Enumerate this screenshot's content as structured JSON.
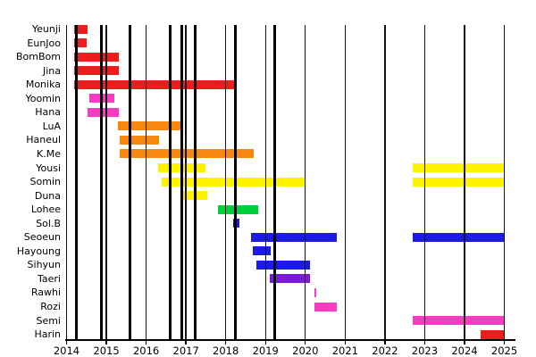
{
  "chart_data": {
    "type": "bar",
    "variant": "member-timeline-gantt",
    "title": "",
    "xlabel": "",
    "ylabel": "",
    "x_ticks": [
      2014,
      2015,
      2016,
      2017,
      2018,
      2019,
      2020,
      2021,
      2022,
      2023,
      2024,
      2025
    ],
    "x_range": [
      2014,
      2025.3
    ],
    "grid": "vertical year gridlines, black",
    "legend": "none",
    "event_lines_years": [
      2014.24,
      2014.88,
      2015.59,
      2016.61,
      2016.89,
      2017.23,
      2018.24,
      2019.23
    ],
    "palette": {
      "red": "#ee1c1c",
      "magenta": "#f73cc4",
      "orange": "#f6870f",
      "yellow": "#fdf200",
      "green": "#00d13a",
      "blue": "#1b1be2",
      "purple": "#7b1ad8",
      "axis": "#000000",
      "text": "#000000",
      "background": "#ffffff"
    },
    "members": [
      {
        "name": "Yeunji",
        "color": "red",
        "segments": [
          [
            2014.19,
            2014.52
          ]
        ]
      },
      {
        "name": "EunJoo",
        "color": "red",
        "segments": [
          [
            2014.19,
            2014.51
          ]
        ]
      },
      {
        "name": "BomBom",
        "color": "red",
        "segments": [
          [
            2014.19,
            2015.32
          ]
        ]
      },
      {
        "name": "Jina",
        "color": "red",
        "segments": [
          [
            2014.19,
            2015.32
          ]
        ]
      },
      {
        "name": "Monika",
        "color": "red",
        "segments": [
          [
            2014.19,
            2018.24
          ]
        ]
      },
      {
        "name": "Yoomin",
        "color": "magenta",
        "segments": [
          [
            2014.57,
            2015.2
          ]
        ]
      },
      {
        "name": "Hana",
        "color": "magenta",
        "segments": [
          [
            2014.53,
            2015.32
          ]
        ]
      },
      {
        "name": "LuA",
        "color": "orange",
        "segments": [
          [
            2015.28,
            2016.89
          ]
        ]
      },
      {
        "name": "Haneul",
        "color": "orange",
        "segments": [
          [
            2015.34,
            2016.33
          ]
        ]
      },
      {
        "name": "K.Me",
        "color": "orange",
        "segments": [
          [
            2015.34,
            2018.71
          ]
        ]
      },
      {
        "name": "Yousi",
        "color": "yellow",
        "segments": [
          [
            2016.31,
            2017.49
          ],
          [
            2022.69,
            2025.0
          ]
        ]
      },
      {
        "name": "Somin",
        "color": "yellow",
        "segments": [
          [
            2016.38,
            2019.98
          ],
          [
            2022.69,
            2025.0
          ]
        ]
      },
      {
        "name": "Duna",
        "color": "yellow",
        "segments": [
          [
            2016.89,
            2017.53
          ]
        ]
      },
      {
        "name": "Lohee",
        "color": "green",
        "segments": [
          [
            2017.8,
            2018.82
          ]
        ]
      },
      {
        "name": "Sol.B",
        "color": "blue",
        "segments": [
          [
            2018.18,
            2018.35
          ]
        ]
      },
      {
        "name": "Seoeun",
        "color": "blue",
        "segments": [
          [
            2018.63,
            2020.78
          ],
          [
            2022.69,
            2025.0
          ]
        ]
      },
      {
        "name": "Hayoung",
        "color": "blue",
        "segments": [
          [
            2018.67,
            2019.14
          ]
        ]
      },
      {
        "name": "Sihyun",
        "color": "blue",
        "segments": [
          [
            2018.78,
            2020.11
          ]
        ]
      },
      {
        "name": "Taeri",
        "color": "purple",
        "segments": [
          [
            2019.1,
            2020.11
          ]
        ]
      },
      {
        "name": "Rawhi",
        "color": "magenta",
        "segments": [
          [
            2020.22,
            2020.28
          ]
        ]
      },
      {
        "name": "Rozi",
        "color": "magenta",
        "segments": [
          [
            2020.22,
            2020.78
          ]
        ]
      },
      {
        "name": "Semi",
        "color": "magenta",
        "segments": [
          [
            2022.69,
            2025.0
          ]
        ]
      },
      {
        "name": "Harin",
        "color": "red",
        "segments": [
          [
            2024.41,
            2025.0
          ]
        ]
      }
    ]
  }
}
